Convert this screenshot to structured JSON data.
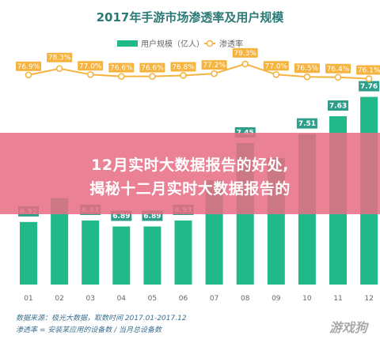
{
  "banner": {
    "line1": "12月实时大数据报告的好处,",
    "line2": "揭秘十二月实时大数据报告的"
  },
  "watermark": "游戏狗",
  "sources": {
    "line1": "数据来源：极光大数据，取数时间 2017.01-2017.12",
    "line2": "渗透率 = 安装某应用的设备数 / 当月总设备数"
  },
  "colors": {
    "bar": "#22b98a",
    "bar_label_bg": "#2e9e8a",
    "line": "#f5b340",
    "rate_label_bg": "#f5b340",
    "title": "#2b7a76"
  },
  "chart_data": {
    "type": "bar",
    "title": "2017年手游市场渗透率及用户规模",
    "categories": [
      "01",
      "02",
      "03",
      "04",
      "05",
      "06",
      "07",
      "08",
      "09",
      "10",
      "11",
      "12"
    ],
    "series": [
      {
        "name": "用户规模（亿人）",
        "type": "bar",
        "values": [
          6.92,
          7.08,
          6.93,
          6.89,
          6.89,
          6.93,
          7.2,
          7.45,
          7.35,
          7.51,
          7.63,
          7.76
        ],
        "labels": [
          "6.92",
          "",
          "6.93",
          "6.89",
          "6.89",
          "6.93",
          "",
          "7.45",
          "",
          "7.51",
          "7.63",
          "7.76"
        ]
      },
      {
        "name": "渗透率",
        "type": "line",
        "values": [
          76.9,
          78.3,
          77.0,
          76.6,
          76.6,
          76.8,
          77.2,
          79.3,
          77.0,
          76.5,
          76.4,
          76.1
        ],
        "labels": [
          "76.9%",
          "78.3%",
          "77.0%",
          "76.6%",
          "76.6%",
          "76.8%",
          "77.2%",
          "79.3%",
          "77.0%",
          "76.5%",
          "76.4%",
          "76.1%"
        ]
      }
    ],
    "ylim_bar": [
      6.5,
      7.8
    ],
    "ylim_line": [
      70,
      84
    ],
    "grid": false,
    "legend": "top-center"
  }
}
